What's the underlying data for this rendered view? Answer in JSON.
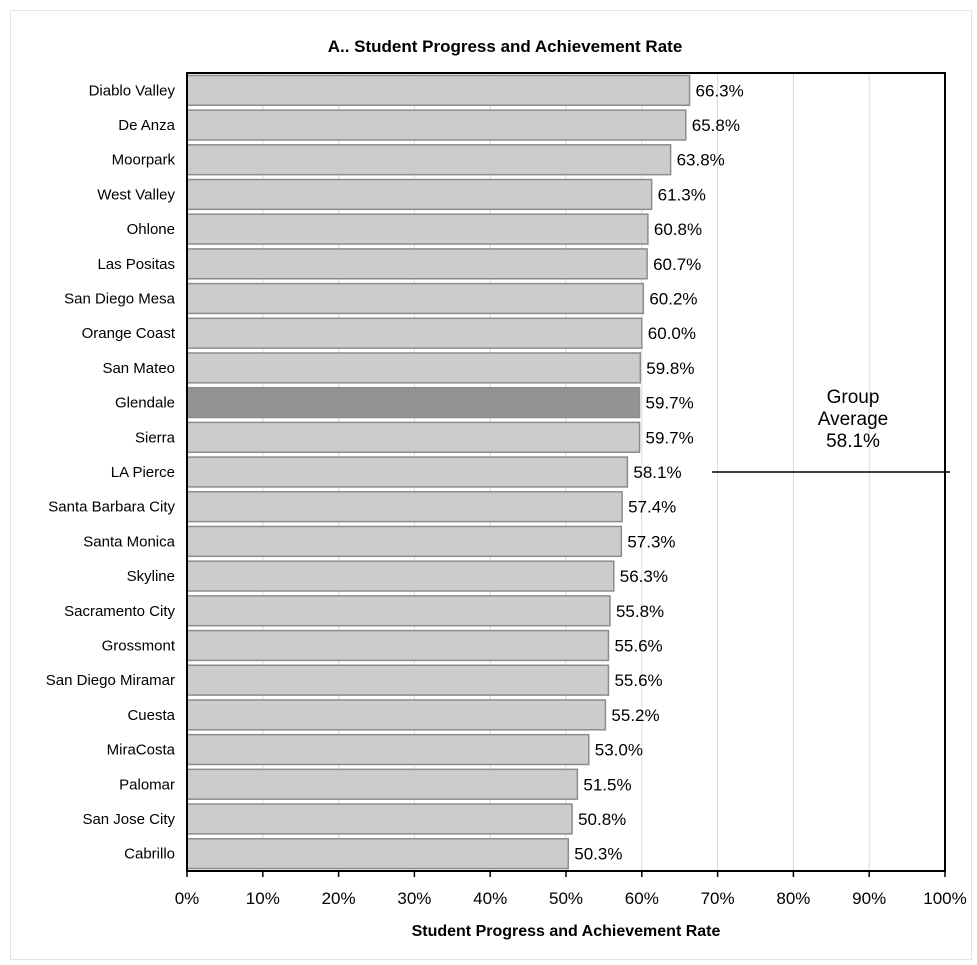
{
  "chart_data": {
    "type": "bar",
    "orientation": "horizontal",
    "title": "A.. Student Progress and Achievement Rate",
    "xlabel": "Student Progress and Achievement Rate",
    "ylabel": "",
    "xlim": [
      0,
      100
    ],
    "x_ticks": [
      "0%",
      "10%",
      "20%",
      "30%",
      "40%",
      "50%",
      "60%",
      "70%",
      "80%",
      "90%",
      "100%"
    ],
    "grid": "vertical",
    "categories": [
      "Diablo Valley",
      "De Anza",
      "Moorpark",
      "West Valley",
      "Ohlone",
      "Las Positas",
      "San Diego Mesa",
      "Orange Coast",
      "San Mateo",
      "Glendale",
      "Sierra",
      "LA Pierce",
      "Santa Barbara City",
      "Santa Monica",
      "Skyline",
      "Sacramento City",
      "Grossmont",
      "San Diego Miramar",
      "Cuesta",
      "MiraCosta",
      "Palomar",
      "San Jose City",
      "Cabrillo"
    ],
    "values": [
      66.3,
      65.8,
      63.8,
      61.3,
      60.8,
      60.7,
      60.2,
      60.0,
      59.8,
      59.7,
      59.7,
      58.1,
      57.4,
      57.3,
      56.3,
      55.8,
      55.6,
      55.6,
      55.2,
      53.0,
      51.5,
      50.8,
      50.3
    ],
    "value_labels": [
      "66.3%",
      "65.8%",
      "63.8%",
      "61.3%",
      "60.8%",
      "60.7%",
      "60.2%",
      "60.0%",
      "59.8%",
      "59.7%",
      "59.7%",
      "58.1%",
      "57.4%",
      "57.3%",
      "56.3%",
      "55.8%",
      "55.6%",
      "55.6%",
      "55.2%",
      "53.0%",
      "51.5%",
      "50.8%",
      "50.3%"
    ],
    "highlight": "Glendale",
    "colors": {
      "bar": "#cccccc",
      "bar_border": "#8c8c8c",
      "highlight": "#939393",
      "grid": "#d9d9d9",
      "axis": "#000000"
    },
    "annotation": {
      "lines": [
        "Group",
        "Average",
        "58.1%"
      ],
      "value": 58.1
    }
  }
}
